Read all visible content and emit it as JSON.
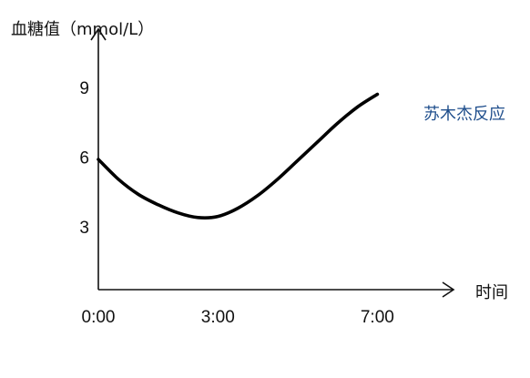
{
  "chart_data": {
    "type": "line",
    "ylabel": "血糖值（mmol/L）",
    "xlabel": "时间",
    "x_ticks": [
      {
        "label": "0:00",
        "value": 0
      },
      {
        "label": "3:00",
        "value": 3
      },
      {
        "label": "7:00",
        "value": 7
      }
    ],
    "y_ticks": [
      {
        "label": "3",
        "value": 3
      },
      {
        "label": "6",
        "value": 6
      },
      {
        "label": "9",
        "value": 9
      }
    ],
    "xlim": [
      0,
      8.5
    ],
    "ylim": [
      0.3,
      11.5
    ],
    "grid": false,
    "series": [
      {
        "name": "苏木杰反应",
        "color": "#1f4e8c",
        "line_color": "#000000",
        "x": [
          0,
          0.5,
          1,
          1.5,
          2,
          2.5,
          3,
          3.5,
          4,
          4.5,
          5,
          5.5,
          6,
          6.5,
          7
        ],
        "y": [
          5.9,
          5.05,
          4.4,
          3.95,
          3.6,
          3.4,
          3.45,
          3.8,
          4.35,
          5.05,
          5.85,
          6.65,
          7.45,
          8.15,
          8.7
        ]
      }
    ]
  }
}
